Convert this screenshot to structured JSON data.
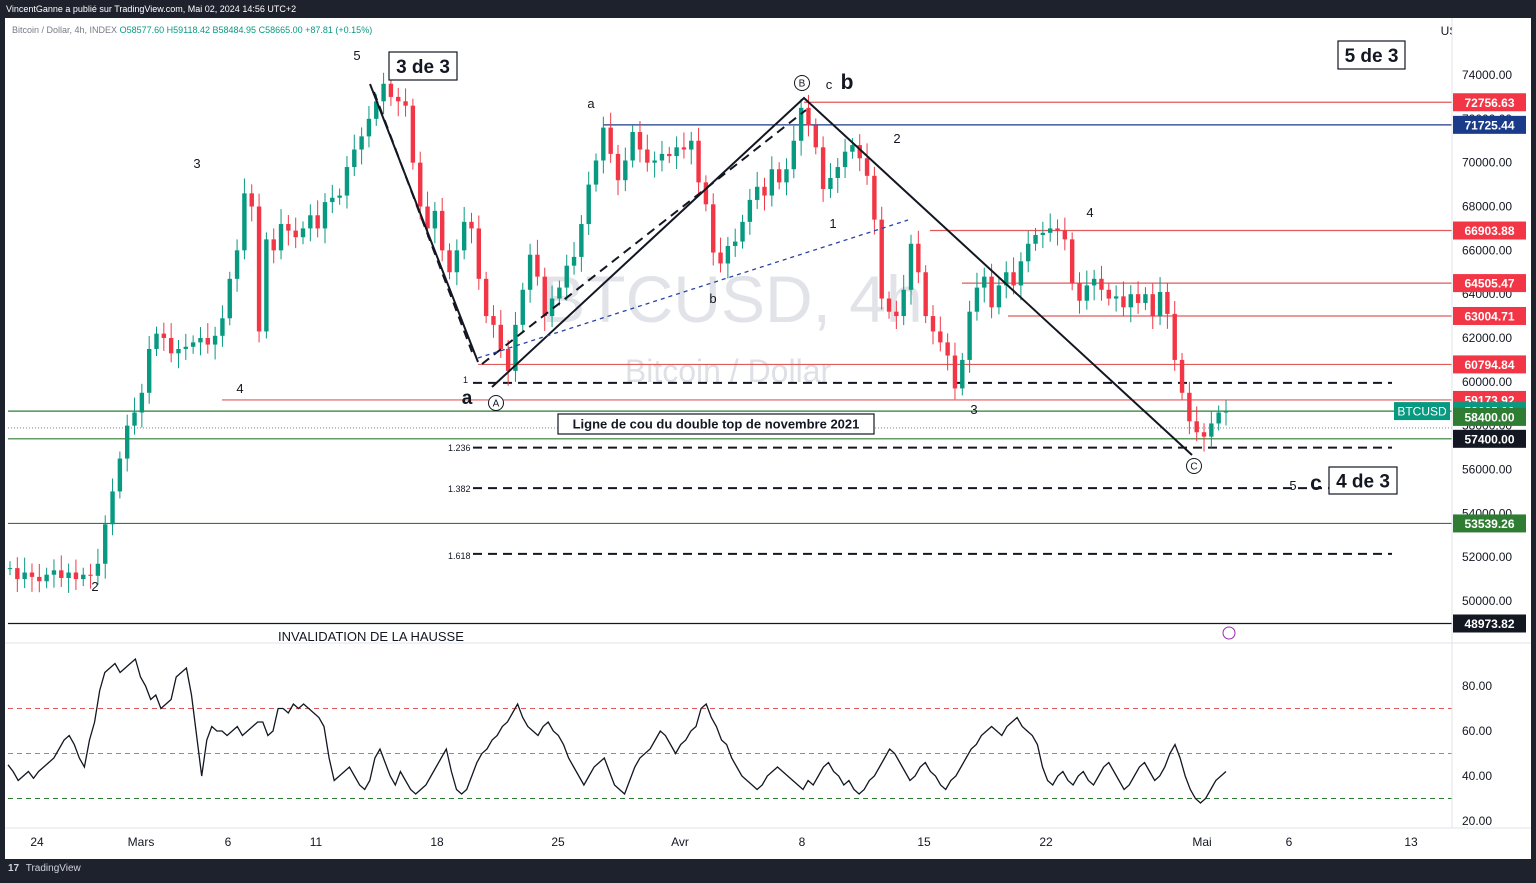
{
  "header": {
    "publisher": "VincentGanne a publié sur TradingView.com, Mai 02, 2024 14:56 UTC+2",
    "symbol_desc": "Bitcoin / Dollar, 4h, INDEX",
    "ohlc": {
      "o": "O58577.60",
      "h": "H59118.42",
      "l": "B58484.95",
      "c": "C58665.00",
      "chg": "+87.81 (+0.15%)"
    },
    "currency": "USD"
  },
  "footer": {
    "brand": "TradingView",
    "logo_glyph": "17"
  },
  "watermark": {
    "symbol": "BTCUSD, 4h",
    "name": "Bitcoin / Dollar"
  },
  "colors": {
    "up": "#089981",
    "down": "#f23645",
    "red_line": "#e05a5a",
    "blue_line": "#1a3a8a",
    "green_line": "#2e7d32",
    "label_dark": "#131722"
  },
  "chart_data": [
    {
      "type": "candlestick",
      "y_axis": {
        "ticks": [
          "74000.00",
          "72000.00",
          "70000.00",
          "68000.00",
          "66000.00",
          "64000.00",
          "62000.00",
          "60000.00",
          "58000.00",
          "56000.00",
          "54000.00",
          "52000.00",
          "50000.00"
        ],
        "range": [
          48300,
          75200
        ]
      },
      "x_axis": {
        "ticks": [
          "24",
          "Mars",
          "6",
          "11",
          "18",
          "25",
          "Avr",
          "8",
          "15",
          "22",
          "Mai",
          "6",
          "13"
        ]
      },
      "price_labels": [
        {
          "value": "72756.63",
          "bg": "#f23645"
        },
        {
          "value": "71725.44",
          "bg": "#1a3a8a"
        },
        {
          "value": "66903.88",
          "bg": "#f23645"
        },
        {
          "value": "64505.47",
          "bg": "#f23645"
        },
        {
          "value": "63004.71",
          "bg": "#f23645"
        },
        {
          "value": "60794.84",
          "bg": "#f23645"
        },
        {
          "value": "59173.92",
          "bg": "#f23645"
        },
        {
          "value": "58665.00",
          "bg": "#089981",
          "ticker": "BTCUSD"
        },
        {
          "value": "58400.00",
          "bg": "#2e7d32"
        },
        {
          "value": "57400.00",
          "bg": "#131722"
        },
        {
          "value": "53539.26",
          "bg": "#2e7d32"
        },
        {
          "value": "48973.82",
          "bg": "#131722"
        }
      ],
      "annotations": {
        "boxes": [
          "3 de 3",
          "5 de 3",
          "4 de 3"
        ],
        "neckline": "Ligne de cou du double top de novembre 2021",
        "invalidation": "INVALIDATION DE LA HAUSSE",
        "fib_levels": [
          "1",
          "1.236",
          "1.382",
          "1.618"
        ],
        "wave_labels": [
          "5",
          "3",
          "4",
          "2",
          "a",
          "a",
          "b",
          "c",
          "b",
          "1",
          "2",
          "3",
          "4",
          "5",
          "c"
        ],
        "circled": [
          "A",
          "B",
          "C"
        ]
      },
      "series": [
        {
          "values": [
            51500,
            51000,
            51300,
            51100,
            50900,
            51200,
            51400,
            51050,
            51300,
            51000,
            51200,
            51150,
            51700,
            53500,
            55000,
            56500,
            58000,
            58600,
            59500,
            61500,
            62200,
            62000,
            61300,
            61500,
            61600,
            61800,
            62000,
            61700,
            62100,
            62900,
            64700,
            66000,
            68600,
            68000,
            62300,
            66500,
            66000,
            67200,
            66900,
            66600,
            67000,
            67600,
            67000,
            68200,
            68400,
            68500,
            69800,
            70600,
            71200,
            72000,
            72800,
            73600,
            73000,
            72800,
            72600,
            70000,
            68000,
            67000,
            67800,
            66000,
            65000,
            66000,
            67300,
            67000,
            64700,
            63000,
            62600,
            61500,
            60500,
            62600,
            64200,
            65800,
            64800,
            63000,
            63800,
            64300,
            65300,
            65700,
            67200,
            69000,
            70100,
            71600,
            70400,
            69200,
            70100,
            71400,
            70600,
            70000,
            70100,
            70400,
            70300,
            70700,
            70600,
            71000,
            69100,
            68100,
            65900,
            65400,
            66200,
            66400,
            67300,
            68300,
            68900,
            68500,
            69700,
            69100,
            69700,
            71000,
            72500,
            71700,
            70700,
            68800,
            69300,
            69800,
            70500,
            70800,
            70200,
            69400,
            67400,
            63800,
            63200,
            63000,
            64200,
            66300,
            65000,
            63000,
            62300,
            61800,
            61200,
            59700,
            61000,
            63200,
            64300,
            64800,
            63400,
            64400,
            65000,
            64400,
            65500,
            66300,
            66700,
            66800,
            67000,
            66900,
            66500,
            64500,
            63700,
            64400,
            64700,
            64200,
            63800,
            63900,
            63400,
            64000,
            63600,
            64000,
            63000,
            64100,
            63100,
            61000,
            59500,
            58200,
            57700,
            57500,
            58100,
            58600,
            58665
          ]
        }
      ]
    },
    {
      "type": "line",
      "name": "RSI",
      "y_axis": {
        "ticks": [
          "80.00",
          "60.00",
          "40.00",
          "20.00"
        ],
        "range": [
          14,
          96
        ]
      },
      "bands": [
        70,
        50,
        30
      ],
      "series": [
        {
          "values": [
            45,
            42,
            38,
            40,
            42,
            39,
            42,
            44,
            46,
            48,
            52,
            56,
            58,
            54,
            48,
            44,
            56,
            64,
            78,
            86,
            88,
            90,
            86,
            88,
            90,
            92,
            84,
            80,
            74,
            76,
            70,
            72,
            74,
            84,
            86,
            88,
            76,
            58,
            40,
            56,
            62,
            60,
            60,
            58,
            60,
            62,
            58,
            60,
            62,
            64,
            64,
            58,
            60,
            70,
            70,
            68,
            72,
            70,
            72,
            70,
            68,
            66,
            62,
            48,
            38,
            40,
            42,
            44,
            40,
            36,
            34,
            38,
            48,
            52,
            46,
            40,
            36,
            42,
            38,
            34,
            32,
            34,
            36,
            40,
            44,
            48,
            52,
            42,
            34,
            32,
            34,
            40,
            46,
            50,
            52,
            56,
            58,
            62,
            64,
            68,
            72,
            66,
            62,
            60,
            58,
            62,
            64,
            60,
            58,
            54,
            48,
            44,
            40,
            36,
            40,
            44,
            46,
            48,
            42,
            36,
            34,
            32,
            38,
            44,
            48,
            50,
            52,
            56,
            60,
            58,
            54,
            50,
            54,
            56,
            60,
            62,
            70,
            72,
            66,
            62,
            56,
            54,
            48,
            44,
            40,
            38,
            36,
            34,
            36,
            40,
            42,
            44,
            42,
            40,
            38,
            36,
            34,
            38,
            36,
            40,
            44,
            46,
            42,
            40,
            36,
            38,
            34,
            32,
            34,
            38,
            40,
            44,
            48,
            52,
            50,
            46,
            42,
            38,
            40,
            44,
            46,
            42,
            40,
            36,
            34,
            38,
            40,
            44,
            48,
            52,
            54,
            58,
            60,
            62,
            60,
            58,
            62,
            64,
            66,
            62,
            60,
            58,
            54,
            44,
            38,
            36,
            40,
            42,
            38,
            36,
            40,
            42,
            38,
            36,
            40,
            44,
            46,
            42,
            38,
            34,
            36,
            40,
            44,
            46,
            42,
            38,
            40,
            44,
            50,
            54,
            48,
            40,
            34,
            30,
            28,
            30,
            34,
            38,
            40,
            42
          ]
        }
      ]
    }
  ]
}
